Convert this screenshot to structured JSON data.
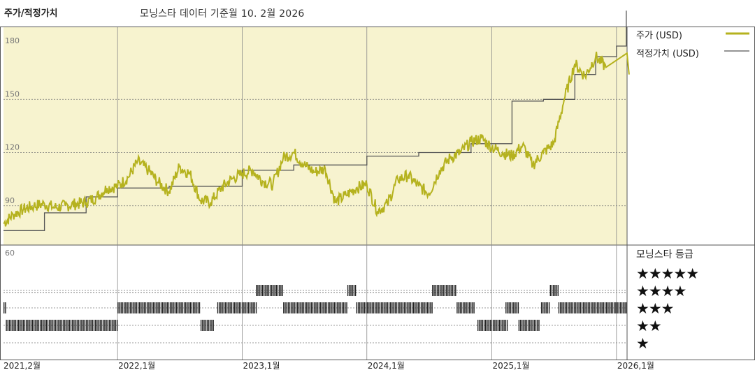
{
  "header": {
    "left_title": "주가/적정가치",
    "subtitle": "모닝스타 데이터 기준월 10. 2월 2026"
  },
  "legend": {
    "price_label": "주가 (USD)",
    "fair_label": "적정가치 (USD)",
    "rating_title": "모닝스타 등급"
  },
  "rating_levels": [
    "★★★★★",
    "★★★★",
    "★★★",
    "★★",
    "★"
  ],
  "colors": {
    "price": "#b5b21e",
    "fair_value": "#555555",
    "plot_background": "#f7f3cf",
    "rating_bars": "#222222"
  },
  "chart_data": [
    {
      "type": "line",
      "title": "",
      "y_ticks": [
        "180",
        "150",
        "120",
        "90",
        "60"
      ],
      "ylim": [
        60,
        180
      ],
      "x_ticks": [
        "2021,2월",
        "2022,1월",
        "2023,1월",
        "2024,1월",
        "2025,1월",
        "2026,1월"
      ],
      "x_range": [
        "2021-02",
        "2026-02"
      ],
      "series": [
        {
          "name": "주가 (USD)",
          "points": [
            [
              "2021-02",
              80
            ],
            [
              "2021-03",
              85
            ],
            [
              "2021-04",
              88
            ],
            [
              "2021-05",
              90
            ],
            [
              "2021-06",
              91
            ],
            [
              "2021-07",
              89
            ],
            [
              "2021-08",
              90
            ],
            [
              "2021-09",
              91
            ],
            [
              "2021-10",
              92
            ],
            [
              "2021-11",
              95
            ],
            [
              "2021-12",
              100
            ],
            [
              "2022-01",
              101
            ],
            [
              "2022-02",
              106
            ],
            [
              "2022-03",
              115
            ],
            [
              "2022-04",
              110
            ],
            [
              "2022-05",
              103
            ],
            [
              "2022-06",
              98
            ],
            [
              "2022-07",
              112
            ],
            [
              "2022-08",
              108
            ],
            [
              "2022-09",
              93
            ],
            [
              "2022-10",
              92
            ],
            [
              "2022-11",
              100
            ],
            [
              "2022-12",
              105
            ],
            [
              "2023-01",
              108
            ],
            [
              "2023-02",
              110
            ],
            [
              "2023-03",
              104
            ],
            [
              "2023-04",
              102
            ],
            [
              "2023-05",
              117
            ],
            [
              "2023-06",
              120
            ],
            [
              "2023-07",
              113
            ],
            [
              "2023-08",
              109
            ],
            [
              "2023-09",
              111
            ],
            [
              "2023-10",
              92
            ],
            [
              "2023-11",
              96
            ],
            [
              "2023-12",
              100
            ],
            [
              "2024-01",
              102
            ],
            [
              "2024-02",
              87
            ],
            [
              "2024-03",
              91
            ],
            [
              "2024-04",
              105
            ],
            [
              "2024-05",
              107
            ],
            [
              "2024-06",
              101
            ],
            [
              "2024-07",
              97
            ],
            [
              "2024-08",
              110
            ],
            [
              "2024-09",
              117
            ],
            [
              "2024-10",
              120
            ],
            [
              "2024-11",
              126
            ],
            [
              "2024-12",
              128
            ],
            [
              "2025-01",
              123
            ],
            [
              "2025-02",
              120
            ],
            [
              "2025-03",
              118
            ],
            [
              "2025-04",
              124
            ],
            [
              "2025-05",
              113
            ],
            [
              "2025-06",
              120
            ],
            [
              "2025-07",
              125
            ],
            [
              "2025-08",
              150
            ],
            [
              "2025-09",
              170
            ],
            [
              "2025-10",
              163
            ],
            [
              "2025-11",
              174
            ],
            [
              "2025-12",
              168
            ]
          ]
        },
        {
          "name": "적정가치 (USD)",
          "points": [
            [
              "2021-02",
              76
            ],
            [
              "2021-06",
              86
            ],
            [
              "2021-10",
              95
            ],
            [
              "2022-01",
              100
            ],
            [
              "2022-06",
              101
            ],
            [
              "2023-01",
              110
            ],
            [
              "2023-06",
              113
            ],
            [
              "2024-01",
              118
            ],
            [
              "2024-06",
              120
            ],
            [
              "2024-11",
              125
            ],
            [
              "2025-03",
              149
            ],
            [
              "2025-06",
              150
            ],
            [
              "2025-09",
              164
            ],
            [
              "2025-11",
              174
            ],
            [
              "2026-01",
              180
            ]
          ]
        }
      ]
    },
    {
      "type": "rating_timeline",
      "categories": [
        "★★★★★",
        "★★★★",
        "★★★",
        "★★",
        "★"
      ],
      "segments": [
        {
          "rating": 3,
          "start": "2021-02-01",
          "end": "2021-02-08"
        },
        {
          "rating": 2,
          "start": "2021-02-08",
          "end": "2022-01-01"
        },
        {
          "rating": 3,
          "start": "2022-01-01",
          "end": "2022-09-01"
        },
        {
          "rating": 2,
          "start": "2022-09-01",
          "end": "2022-10-10"
        },
        {
          "rating": 3,
          "start": "2022-10-20",
          "end": "2023-02-10"
        },
        {
          "rating": 4,
          "start": "2023-02-10",
          "end": "2023-05-01"
        },
        {
          "rating": 3,
          "start": "2023-05-01",
          "end": "2023-11-05"
        },
        {
          "rating": 4,
          "start": "2023-11-05",
          "end": "2023-12-01"
        },
        {
          "rating": 3,
          "start": "2023-12-01",
          "end": "2024-07-10"
        },
        {
          "rating": 4,
          "start": "2024-07-10",
          "end": "2024-09-20"
        },
        {
          "rating": 3,
          "start": "2024-09-20",
          "end": "2024-11-10"
        },
        {
          "rating": 2,
          "start": "2024-11-20",
          "end": "2025-02-15"
        },
        {
          "rating": 3,
          "start": "2025-02-10",
          "end": "2025-03-20"
        },
        {
          "rating": 2,
          "start": "2025-03-20",
          "end": "2025-05-20"
        },
        {
          "rating": 3,
          "start": "2025-05-25",
          "end": "2025-06-20"
        },
        {
          "rating": 4,
          "start": "2025-06-20",
          "end": "2025-07-15"
        },
        {
          "rating": 3,
          "start": "2025-07-15",
          "end": "2026-02-01"
        }
      ]
    }
  ]
}
